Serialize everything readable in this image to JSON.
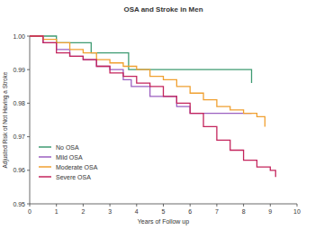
{
  "chart_data": {
    "type": "line",
    "title": "OSA and Stroke in Men",
    "x_label": "Years of Follow up",
    "y_label": "Adjusted Risk of Not Having a Stroke",
    "xlim": [
      0,
      10
    ],
    "ylim": [
      0.95,
      1.0
    ],
    "xticks": [
      0,
      1,
      2,
      3,
      4,
      5,
      6,
      7,
      8,
      9,
      10
    ],
    "yticks": [
      {
        "value": 0.95,
        "label": "0.95"
      },
      0.96,
      0.97,
      0.98,
      0.99,
      {
        "value": 1.0,
        "label": "1.00"
      }
    ],
    "line_style": "step",
    "legend": "bottom-left",
    "grid": false,
    "series": [
      {
        "name": "No OSA",
        "color": "#3f9b72",
        "x": [
          0,
          1.0,
          2.3,
          3.7,
          8.3
        ],
        "values": [
          1.0,
          0.998,
          0.995,
          0.99,
          0.986
        ]
      },
      {
        "name": "Mild OSA",
        "color": "#9b5fc0",
        "x": [
          0,
          0.5,
          1,
          1.5,
          2,
          2.5,
          3,
          3.5,
          3.8,
          4.5,
          5.5,
          6,
          8.3
        ],
        "values": [
          1.0,
          0.998,
          0.996,
          0.994,
          0.993,
          0.991,
          0.99,
          0.987,
          0.985,
          0.982,
          0.979,
          0.977,
          0.977
        ]
      },
      {
        "name": "Moderate OSA",
        "color": "#f0a030",
        "x": [
          0,
          0.5,
          1,
          1.5,
          2,
          2.5,
          3,
          3.5,
          4,
          4.5,
          5,
          5.5,
          6,
          6.5,
          7,
          7.5,
          8,
          8.5,
          8.8
        ],
        "values": [
          1.0,
          0.999,
          0.998,
          0.996,
          0.995,
          0.993,
          0.992,
          0.991,
          0.99,
          0.988,
          0.987,
          0.985,
          0.983,
          0.981,
          0.979,
          0.978,
          0.977,
          0.976,
          0.973
        ]
      },
      {
        "name": "Severe OSA",
        "color": "#c4245c",
        "x": [
          0,
          0.5,
          1,
          1.5,
          2,
          2.5,
          3,
          3.5,
          4,
          4.5,
          5,
          5.5,
          6,
          6.5,
          7,
          7.5,
          8,
          8.5,
          9,
          9.2
        ],
        "values": [
          1.0,
          0.998,
          0.995,
          0.994,
          0.993,
          0.991,
          0.989,
          0.988,
          0.986,
          0.985,
          0.982,
          0.98,
          0.977,
          0.973,
          0.969,
          0.966,
          0.963,
          0.961,
          0.96,
          0.958
        ]
      }
    ]
  }
}
